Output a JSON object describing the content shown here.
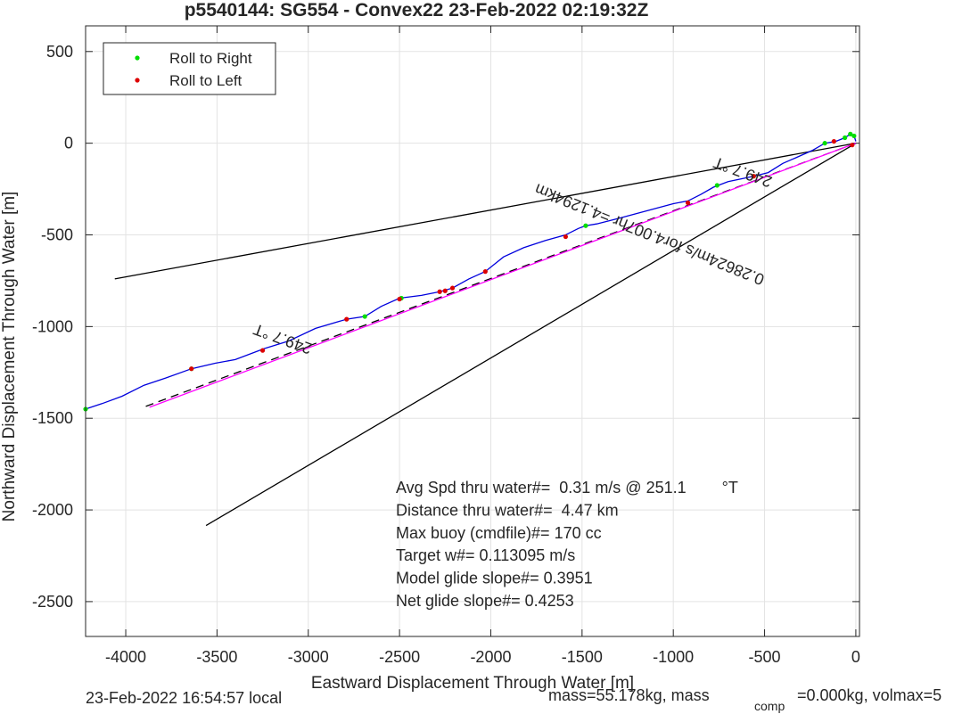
{
  "chart_data": {
    "type": "scatter",
    "title": "p5540144: SG554 - Convex22 23-Feb-2022 02:19:32Z",
    "xlabel": "Eastward Displacement Through Water [m]",
    "ylabel": "Northward Displacement Through Water [m]",
    "xlim": [
      -4220,
      20
    ],
    "ylim": [
      -2690,
      640
    ],
    "xticks": [
      -4000,
      -3500,
      -3000,
      -2500,
      -2000,
      -1500,
      -1000,
      -500,
      0
    ],
    "xticklabels": [
      "-4000",
      "-3500",
      "-3000",
      "-2500",
      "-2000",
      "-1500",
      "-1000",
      "-500",
      "0"
    ],
    "yticks": [
      500,
      0,
      -500,
      -1000,
      -1500,
      -2000,
      -2500
    ],
    "yticklabels": [
      "500",
      "0",
      "-500",
      "-1000",
      "-1500",
      "-2000",
      "-2500"
    ],
    "grid": true,
    "legend_position": "top-left",
    "legend": [
      {
        "label": "Roll to Right",
        "color": "#00dd00"
      },
      {
        "label": "Roll to Left",
        "color": "#dd0000"
      }
    ],
    "track": {
      "color": "#0000dd",
      "x": [
        -4220,
        -4130,
        -4020,
        -3900,
        -3780,
        -3640,
        -3510,
        -3400,
        -3240,
        -3110,
        -2960,
        -2790,
        -2690,
        -2600,
        -2500,
        -2380,
        -2280,
        -2210,
        -2120,
        -2030,
        -1930,
        -1820,
        -1700,
        -1590,
        -1520,
        -1480,
        -1420,
        -1300,
        -1150,
        -1000,
        -920,
        -850,
        -780,
        -700,
        -560,
        -480,
        -400,
        -330,
        -240,
        -170,
        -110,
        -60,
        -30,
        -10,
        0
      ],
      "y": [
        -1450,
        -1420,
        -1380,
        -1320,
        -1280,
        -1230,
        -1200,
        -1180,
        -1120,
        -1080,
        -1010,
        -960,
        -945,
        -890,
        -845,
        -830,
        -810,
        -790,
        -740,
        -700,
        -620,
        -570,
        -530,
        -500,
        -465,
        -450,
        -440,
        -410,
        -370,
        -330,
        -315,
        -280,
        -240,
        -210,
        -180,
        -160,
        -110,
        -80,
        -40,
        0,
        10,
        30,
        50,
        40,
        10
      ]
    },
    "roll_right": {
      "x": [
        -4220,
        -3640,
        -2690,
        -2490,
        -1480,
        -760,
        -560,
        -170,
        -60,
        -30,
        -10
      ],
      "y": [
        -1450,
        -1230,
        -945,
        -845,
        -450,
        -230,
        -180,
        0,
        30,
        50,
        40
      ]
    },
    "roll_left": {
      "x": [
        -3640,
        -3250,
        -2790,
        -2500,
        -2280,
        -2250,
        -2210,
        -2030,
        -1590,
        -920,
        -560,
        -120,
        -20
      ],
      "y": [
        -1230,
        -1130,
        -960,
        -850,
        -810,
        -805,
        -790,
        -700,
        -510,
        -325,
        -180,
        10,
        -10
      ]
    },
    "guide_lines": [
      {
        "x": [
          -4060,
          0
        ],
        "y": [
          -740,
          0
        ],
        "color": "#000000"
      },
      {
        "x": [
          -3560,
          0
        ],
        "y": [
          -2085,
          0
        ],
        "color": "#000000"
      },
      {
        "x": [
          -3890,
          0
        ],
        "y": [
          -1435,
          0
        ],
        "color": "#000000",
        "dashed": true
      },
      {
        "x": [
          -3870,
          0
        ],
        "y": [
          -1440,
          0
        ],
        "color": "#ff00ff"
      }
    ],
    "annotations": [
      {
        "text": "249.7 °T",
        "x": -3130,
        "y": -1040,
        "rotation_deg": -160
      },
      {
        "text": "249.7 °T",
        "x": -610,
        "y": -130,
        "rotation_deg": -160
      },
      {
        "text": "0.28624m/s for4.007hr =4.1294km",
        "x": -1120,
        "y": -470,
        "rotation_deg": -158
      }
    ],
    "stats": [
      "Avg Spd thru water#=  0.31 m/s @ 251.1        °T",
      "Distance thru water#=  4.47 km",
      "Max buoy (cmdfile)#= 170 cc",
      "Target w#= 0.113095 m/s",
      "Model glide slope#= 0.3951",
      "Net glide slope#= 0.4253"
    ]
  },
  "footer": {
    "local_time": "23-Feb-2022 16:54:57 local",
    "mass_text": "mass=55.178kg, mass",
    "mass_sub": "comp",
    "mass_rest": "=0.000kg, volmax=5"
  }
}
